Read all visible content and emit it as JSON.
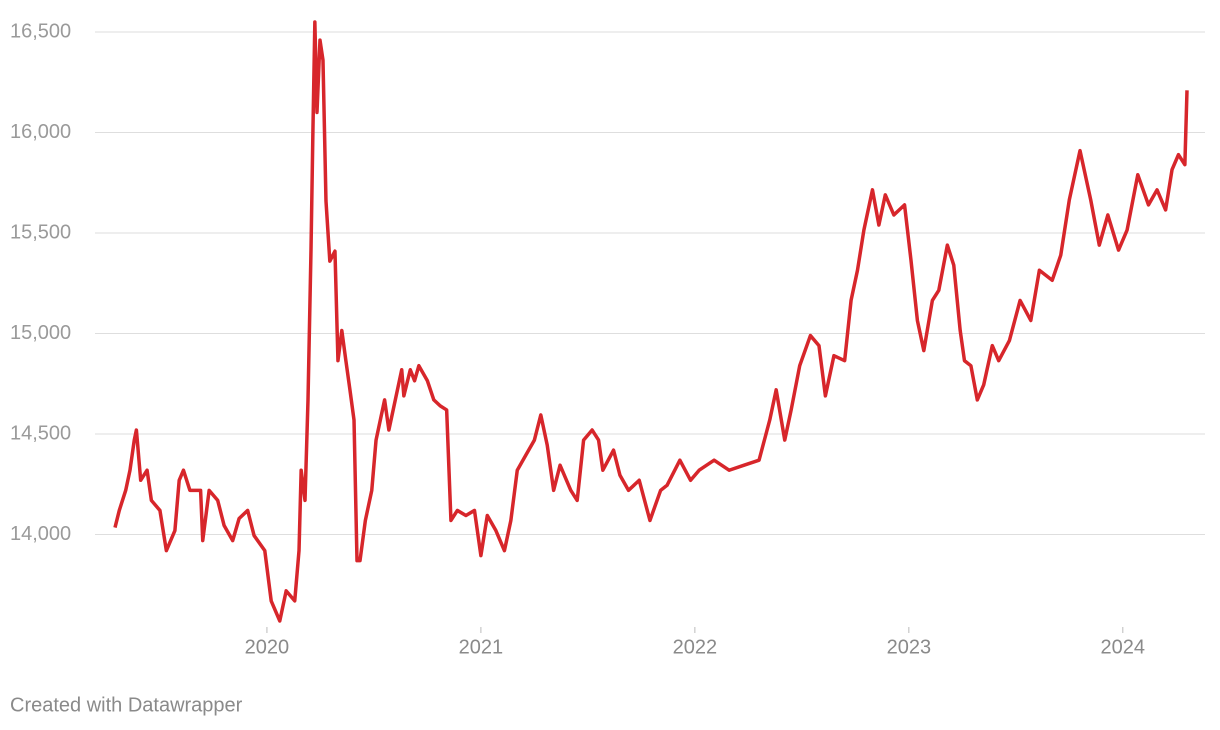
{
  "chart_data": {
    "type": "line",
    "credit": "Created with Datawrapper",
    "x": [
      2019.29,
      2019.31,
      2019.34,
      2019.36,
      2019.38,
      2019.39,
      2019.41,
      2019.44,
      2019.46,
      2019.5,
      2019.53,
      2019.57,
      2019.59,
      2019.61,
      2019.64,
      2019.69,
      2019.7,
      2019.73,
      2019.77,
      2019.8,
      2019.84,
      2019.87,
      2019.91,
      2019.94,
      2019.99,
      2020.02,
      2020.06,
      2020.09,
      2020.13,
      2020.15,
      2020.16,
      2020.178,
      2020.192,
      2020.206,
      2020.215,
      2020.224,
      2020.234,
      2020.248,
      2020.262,
      2020.276,
      2020.294,
      2020.318,
      2020.332,
      2020.35,
      2020.369,
      2020.388,
      2020.407,
      2020.421,
      2020.435,
      2020.46,
      2020.49,
      2020.51,
      2020.53,
      2020.55,
      2020.57,
      2020.6,
      2020.63,
      2020.64,
      2020.67,
      2020.69,
      2020.71,
      2020.75,
      2020.78,
      2020.81,
      2020.84,
      2020.86,
      2020.89,
      2020.93,
      2020.97,
      2021.0,
      2021.03,
      2021.07,
      2021.11,
      2021.14,
      2021.17,
      2021.21,
      2021.25,
      2021.28,
      2021.31,
      2021.34,
      2021.37,
      2021.42,
      2021.45,
      2021.48,
      2021.52,
      2021.55,
      2021.57,
      2021.62,
      2021.65,
      2021.69,
      2021.74,
      2021.79,
      2021.84,
      2021.87,
      2021.93,
      2021.98,
      2022.02,
      2022.09,
      2022.16,
      2022.23,
      2022.3,
      2022.35,
      2022.38,
      2022.42,
      2022.45,
      2022.49,
      2022.54,
      2022.58,
      2022.61,
      2022.65,
      2022.7,
      2022.73,
      2022.76,
      2022.79,
      2022.83,
      2022.86,
      2022.89,
      2022.93,
      2022.98,
      2023.01,
      2023.04,
      2023.07,
      2023.11,
      2023.14,
      2023.18,
      2023.21,
      2023.24,
      2023.26,
      2023.29,
      2023.32,
      2023.35,
      2023.39,
      2023.42,
      2023.47,
      2023.52,
      2023.57,
      2023.61,
      2023.67,
      2023.71,
      2023.75,
      2023.8,
      2023.85,
      2023.89,
      2023.93,
      2023.98,
      2024.02,
      2024.07,
      2024.12,
      2024.16,
      2024.2,
      2024.23,
      2024.26,
      2024.29,
      2024.3
    ],
    "series": [
      {
        "color": "#d7262b",
        "values": [
          14035,
          14120,
          14220,
          14320,
          14470,
          14520,
          14270,
          14320,
          14170,
          14120,
          13920,
          14020,
          14270,
          14320,
          14220,
          14220,
          13970,
          14220,
          14170,
          14045,
          13970,
          14080,
          14120,
          13995,
          13920,
          13670,
          13570,
          13720,
          13670,
          13920,
          14320,
          14170,
          14670,
          15415,
          16010,
          16550,
          16100,
          16460,
          16360,
          15660,
          15360,
          15410,
          14865,
          15015,
          14865,
          14720,
          14570,
          13870,
          13870,
          14070,
          14220,
          14470,
          14570,
          14670,
          14520,
          14670,
          14820,
          14690,
          14820,
          14765,
          14840,
          14765,
          14670,
          14640,
          14620,
          14070,
          14120,
          14095,
          14120,
          13895,
          14095,
          14020,
          13920,
          14070,
          14320,
          14395,
          14470,
          14595,
          14445,
          14220,
          14345,
          14220,
          14170,
          14470,
          14520,
          14470,
          14320,
          14420,
          14295,
          14220,
          14270,
          14070,
          14220,
          14245,
          14370,
          14270,
          14320,
          14370,
          14320,
          14345,
          14370,
          14570,
          14720,
          14470,
          14620,
          14840,
          14990,
          14940,
          14690,
          14890,
          14865,
          15165,
          15315,
          15515,
          15715,
          15540,
          15690,
          15590,
          15640,
          15365,
          15065,
          14915,
          15165,
          15215,
          15440,
          15340,
          15015,
          14865,
          14840,
          14670,
          14745,
          14940,
          14865,
          14965,
          15165,
          15065,
          15315,
          15265,
          15390,
          15665,
          15910,
          15665,
          15440,
          15590,
          15415,
          15515,
          15790,
          15640,
          15715,
          15615,
          15815,
          15890,
          15840,
          16210
        ]
      }
    ],
    "xlim": [
      2019.29,
      2024.3
    ],
    "xticks": [
      2020,
      2021,
      2022,
      2023,
      2024
    ],
    "ylim": [
      13550,
      16550
    ],
    "yticks": [
      {
        "value": 14000,
        "label": "14,000"
      },
      {
        "value": 14500,
        "label": "14,500"
      },
      {
        "value": 15000,
        "label": "15,000"
      },
      {
        "value": 15500,
        "label": "15,500"
      },
      {
        "value": 16000,
        "label": "16,000"
      },
      {
        "value": 16500,
        "label": "16,500"
      }
    ],
    "grid": true
  }
}
